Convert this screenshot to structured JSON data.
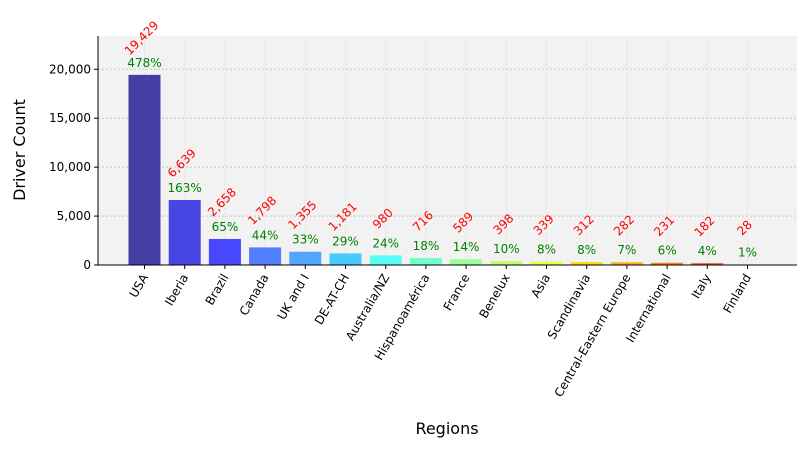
{
  "chart_data": {
    "type": "bar",
    "title": "",
    "xlabel": "Regions",
    "ylabel": "Driver Count",
    "ylim": [
      0,
      23400
    ],
    "yticks": [
      0,
      5000,
      10000,
      15000,
      20000
    ],
    "ytick_labels": [
      "0",
      "5,000",
      "10,000",
      "15,000",
      "20,000"
    ],
    "grid": "y-dotted",
    "plot_background": "#f2f2f2",
    "value_label_color": "#ff0000",
    "percent_label_color": "#008000",
    "categories": [
      "USA",
      "Iberia",
      "Brazil",
      "Canada",
      "UK and I",
      "DE-AT-CH",
      "Australia/NZ",
      "Hispanoamérica",
      "France",
      "Benelux",
      "Asia",
      "Scandinavia",
      "Central-Eastern Europe",
      "International",
      "Italy",
      "Finland"
    ],
    "values": [
      19429,
      6639,
      2658,
      1798,
      1355,
      1181,
      980,
      716,
      589,
      398,
      339,
      312,
      282,
      231,
      182,
      28
    ],
    "value_labels": [
      "19,429",
      "6,639",
      "2,658",
      "1,798",
      "1,355",
      "1,181",
      "980",
      "716",
      "589",
      "398",
      "339",
      "312",
      "282",
      "231",
      "182",
      "28"
    ],
    "percent_labels": [
      "478%",
      "163%",
      "65%",
      "44%",
      "33%",
      "29%",
      "24%",
      "18%",
      "14%",
      "10%",
      "8%",
      "8%",
      "7%",
      "6%",
      "4%",
      "1%"
    ],
    "colors": [
      "#2b2596",
      "#2f2ee0",
      "#2f30ff",
      "#3b6dff",
      "#3c9bff",
      "#2fc4ff",
      "#44fff6",
      "#5effc2",
      "#8dff8e",
      "#bdff5b",
      "#eaff27",
      "#ffd600",
      "#ffa200",
      "#ff6b00",
      "#e63b00",
      "#a80000"
    ]
  }
}
